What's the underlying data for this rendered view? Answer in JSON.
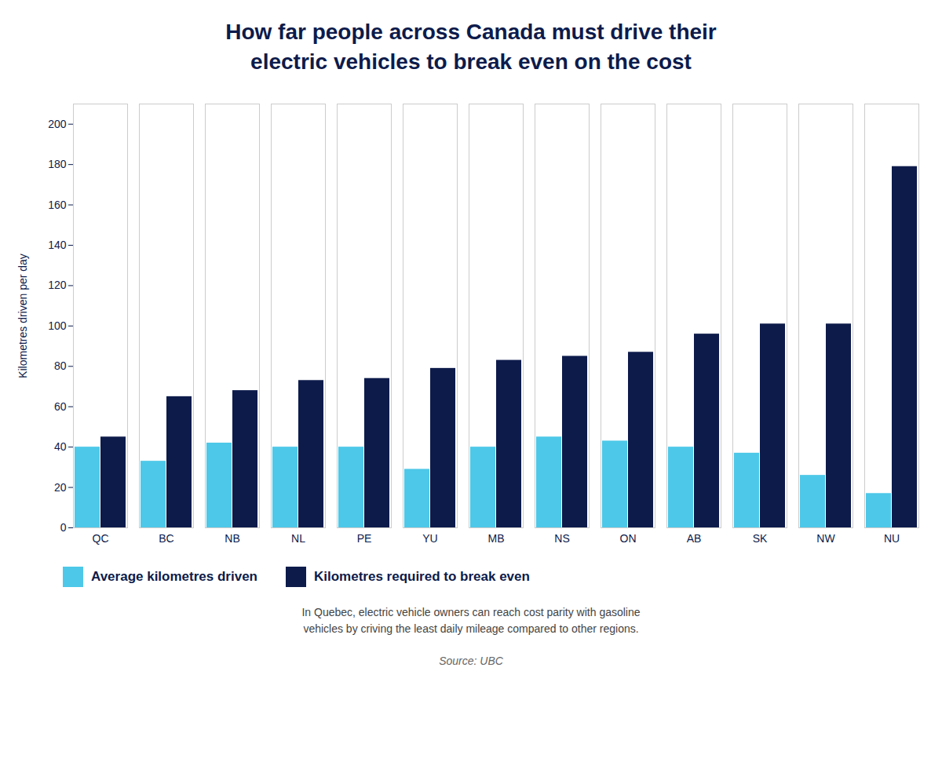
{
  "chart_data": {
    "type": "bar",
    "title": "How far people across Canada must drive their\nelectric vehicles to break even on the cost",
    "ylabel": "Kilometres driven per day",
    "categories": [
      "QC",
      "BC",
      "NB",
      "NL",
      "PE",
      "YU",
      "MB",
      "NS",
      "ON",
      "AB",
      "SK",
      "NW",
      "NU"
    ],
    "series": [
      {
        "name": "Average kilometres driven",
        "color": "#4DC8E8",
        "values": [
          40,
          33,
          42,
          40,
          40,
          29,
          40,
          45,
          43,
          40,
          37,
          26,
          17
        ]
      },
      {
        "name": "Kilometres required to break even",
        "color": "#0D1B4B",
        "values": [
          45,
          65,
          68,
          73,
          74,
          79,
          83,
          85,
          87,
          96,
          101,
          101,
          179
        ]
      }
    ],
    "ylim": [
      0,
      210
    ],
    "yticks": [
      0,
      20,
      40,
      60,
      80,
      100,
      120,
      140,
      160,
      180,
      200
    ],
    "grid": false,
    "legend": "bottom",
    "annotation": "In Quebec, electric vehicle owners can reach cost parity with gasoline\nvehicles by criving the least daily mileage compared to other regions.",
    "source": "Source: UBC"
  }
}
